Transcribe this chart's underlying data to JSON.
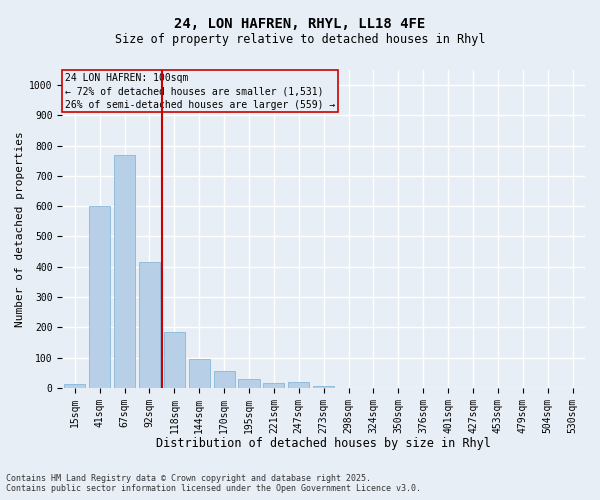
{
  "title_line1": "24, LON HAFREN, RHYL, LL18 4FE",
  "title_line2": "Size of property relative to detached houses in Rhyl",
  "xlabel": "Distribution of detached houses by size in Rhyl",
  "ylabel": "Number of detached properties",
  "annotation_title": "24 LON HAFREN: 100sqm",
  "annotation_line1": "← 72% of detached houses are smaller (1,531)",
  "annotation_line2": "26% of semi-detached houses are larger (559) →",
  "bar_color": "#b8cfe8",
  "bar_edge_color": "#7aafd4",
  "vline_color": "#cc0000",
  "background_color": "#e8eef5",
  "grid_color": "#ffffff",
  "categories": [
    "15sqm",
    "41sqm",
    "67sqm",
    "92sqm",
    "118sqm",
    "144sqm",
    "170sqm",
    "195sqm",
    "221sqm",
    "247sqm",
    "273sqm",
    "298sqm",
    "324sqm",
    "350sqm",
    "376sqm",
    "401sqm",
    "427sqm",
    "453sqm",
    "479sqm",
    "504sqm",
    "530sqm"
  ],
  "values": [
    12,
    600,
    770,
    415,
    185,
    95,
    55,
    30,
    15,
    20,
    5,
    0,
    0,
    0,
    0,
    0,
    0,
    0,
    0,
    0,
    0
  ],
  "ylim": [
    0,
    1050
  ],
  "yticks": [
    0,
    100,
    200,
    300,
    400,
    500,
    600,
    700,
    800,
    900,
    1000
  ],
  "vline_x_index": 3,
  "footer_line1": "Contains HM Land Registry data © Crown copyright and database right 2025.",
  "footer_line2": "Contains public sector information licensed under the Open Government Licence v3.0.",
  "annotation_box_color": "#cc0000",
  "title_fontsize": 10,
  "subtitle_fontsize": 8.5,
  "ylabel_fontsize": 8,
  "xlabel_fontsize": 8.5,
  "tick_fontsize": 7,
  "ann_fontsize": 7,
  "footer_fontsize": 6
}
